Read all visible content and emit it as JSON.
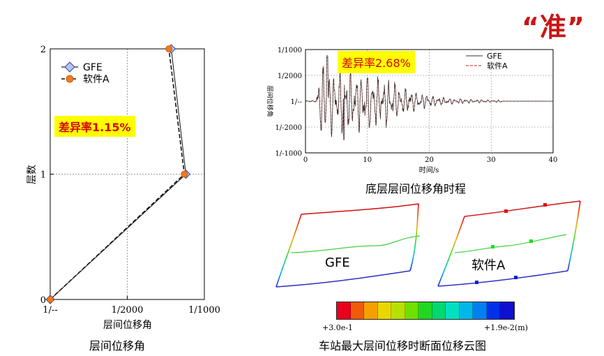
{
  "page": {
    "mark": "“准”"
  },
  "chart_data": [
    {
      "type": "line",
      "id": "left-profile",
      "title": "层间位移角",
      "xlabel": "层间位移角",
      "ylabel": "层数",
      "x_ticks": [
        "1/--",
        "1/2000",
        "1/1000"
      ],
      "x_tick_values": [
        0,
        0.0005,
        0.001
      ],
      "y_ticks": [
        "0",
        "1",
        "2"
      ],
      "y_tick_values": [
        0,
        1,
        2
      ],
      "xlim": [
        0,
        0.001
      ],
      "ylim": [
        0,
        2
      ],
      "grid": "dotted",
      "legend": [
        "GFE",
        "软件A"
      ],
      "annotation": "差异率1.15%",
      "series": [
        {
          "name": "GFE",
          "style": "solid",
          "marker": "diamond",
          "color": "#222222",
          "marker_fill": "#b8c4f0",
          "x": [
            0,
            0.00088,
            0.000785
          ],
          "y": [
            0,
            1,
            2
          ]
        },
        {
          "name": "软件A",
          "style": "dashed",
          "marker": "circle",
          "color": "#111111",
          "marker_fill": "#f07820",
          "x": [
            0,
            0.00087,
            0.00077
          ],
          "y": [
            0,
            1,
            2
          ]
        }
      ]
    },
    {
      "type": "line",
      "id": "time-history",
      "title": "底层层间位移角时程",
      "xlabel": "时间/s",
      "ylabel": "层间位移角",
      "x_ticks": [
        "0",
        "10",
        "20",
        "30",
        "40"
      ],
      "x_tick_values": [
        0,
        10,
        20,
        30,
        40
      ],
      "y_ticks": [
        "1/1000",
        "1/2000",
        "1/--",
        "1/-2000",
        "1/-1000"
      ],
      "y_tick_values": [
        0.001,
        0.0005,
        0,
        -0.0005,
        -0.001
      ],
      "xlim": [
        0,
        40
      ],
      "ylim": [
        -0.001,
        0.001
      ],
      "grid": "dotted",
      "legend": [
        "GFE",
        "软件A"
      ],
      "annotation": "差异率2.68%",
      "series": [
        {
          "name": "GFE",
          "style": "solid",
          "color": "#333333"
        },
        {
          "name": "软件A",
          "style": "dashed",
          "color": "#cc2020"
        }
      ]
    },
    {
      "type": "heatmap",
      "id": "contour",
      "title": "车站最大层间位移时断面位移云图",
      "panels": [
        "GFE",
        "软件A"
      ],
      "colorbar_min_label": "+3.0e-1",
      "colorbar_max_label": "+1.9e-2(m)",
      "colorbar_colors": [
        "#e8001c",
        "#f05a0a",
        "#f5a000",
        "#e8d800",
        "#b8e000",
        "#70e000",
        "#20d820",
        "#00d870",
        "#00e0c0",
        "#00b8e8",
        "#0080f0",
        "#0030e8",
        "#1010d0"
      ]
    }
  ]
}
